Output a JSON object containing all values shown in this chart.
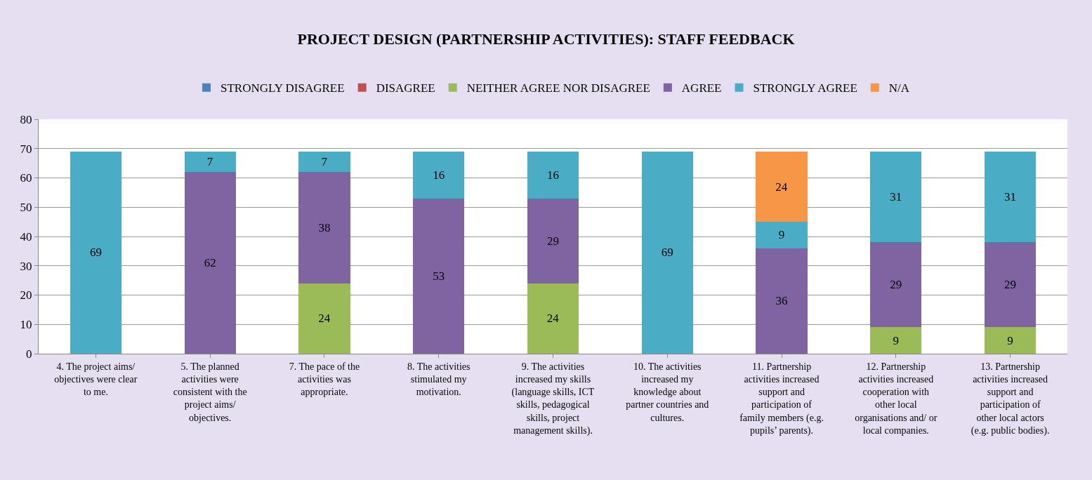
{
  "chart_data": {
    "type": "bar",
    "title": "PROJECT DESIGN (PARTNERSHIP ACTIVITIES): STAFF FEEDBACK",
    "stacked": true,
    "data_labels": true,
    "legend": "top",
    "grid": "y",
    "ylim": [
      0,
      80
    ],
    "yticks": [
      0,
      10,
      20,
      30,
      40,
      50,
      60,
      70,
      80
    ],
    "categories": [
      "4. The project aims/ objectives were clear to me.",
      "5. The planned activities were consistent with the project aims/ objectives.",
      "7. The pace of the activities was appropriate.",
      "8. The activities stimulated my motivation.",
      "9. The activities increased my skills (language skills, ICT skills, pedagogical skills, project management skills).",
      "10. The activities increased my knowledge about partner countries and cultures.",
      "11. Partnership activities increased support and participation of family members (e.g. pupils’ parents).",
      "12. Partnership activities increased cooperation with other local organisations and/ or local companies.",
      "13. Partnership activities increased support and participation of other local actors (e.g. public bodies)."
    ],
    "series": [
      {
        "name": "STRONGLY DISAGREE",
        "color": "#4f81bd",
        "values": [
          null,
          null,
          null,
          null,
          null,
          null,
          null,
          null,
          null
        ]
      },
      {
        "name": "DISAGREE",
        "color": "#c0504d",
        "values": [
          null,
          null,
          null,
          null,
          null,
          null,
          null,
          null,
          null
        ]
      },
      {
        "name": "NEITHER AGREE NOR DISAGREE",
        "color": "#9bbb59",
        "values": [
          null,
          null,
          24,
          null,
          24,
          null,
          null,
          9,
          9
        ]
      },
      {
        "name": "AGREE",
        "color": "#8064a2",
        "values": [
          null,
          62,
          38,
          53,
          29,
          null,
          36,
          29,
          29
        ]
      },
      {
        "name": "STRONGLY AGREE",
        "color": "#4bacc6",
        "values": [
          69,
          7,
          7,
          16,
          16,
          69,
          9,
          31,
          31
        ]
      },
      {
        "name": "N/A",
        "color": "#f79646",
        "values": [
          null,
          null,
          null,
          null,
          null,
          null,
          24,
          null,
          null
        ]
      }
    ]
  }
}
